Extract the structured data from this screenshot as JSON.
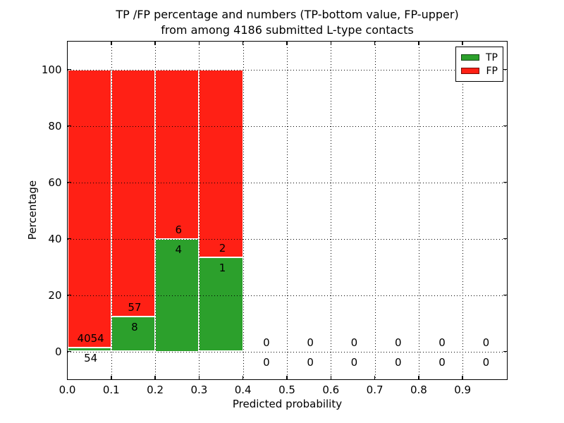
{
  "figure": {
    "title_line1": "TP /FP percentage and numbers (TP-bottom value, FP-upper)",
    "title_line2": "from among 4186 submitted L-type contacts",
    "xlabel": "Predicted probability",
    "ylabel": "Percentage"
  },
  "legend": {
    "position": "upper right",
    "items": [
      {
        "label": "TP",
        "color": "#2ca02c"
      },
      {
        "label": "FP",
        "color": "#ff2015"
      }
    ]
  },
  "chart_data": {
    "type": "bar",
    "stacked": true,
    "title": "TP /FP percentage and numbers (TP-bottom value, FP-upper) from among 4186 submitted L-type contacts",
    "xlabel": "Predicted probability",
    "ylabel": "Percentage",
    "total_submitted": 4186,
    "xlim": [
      0.0,
      1.0
    ],
    "ylim": [
      -9.75,
      110
    ],
    "grid": "dotted black, drawn above bars",
    "legend_position": "upper right",
    "bin_edges": [
      0.0,
      0.1,
      0.2,
      0.3,
      0.4,
      0.5,
      0.6,
      0.7,
      0.8,
      0.9,
      1.0
    ],
    "categories": [
      "0.0-0.1",
      "0.1-0.2",
      "0.2-0.3",
      "0.3-0.4",
      "0.4-0.5",
      "0.5-0.6",
      "0.6-0.7",
      "0.7-0.8",
      "0.8-0.9",
      "0.9-1.0"
    ],
    "series": [
      {
        "name": "TP",
        "color": "#2ca02c",
        "counts": [
          54,
          8,
          4,
          1,
          0,
          0,
          0,
          0,
          0,
          0
        ],
        "percent": [
          1.31,
          12.31,
          40.0,
          33.33,
          0,
          0,
          0,
          0,
          0,
          0
        ]
      },
      {
        "name": "FP",
        "color": "#ff2015",
        "counts": [
          4054,
          57,
          6,
          2,
          0,
          0,
          0,
          0,
          0,
          0
        ],
        "percent": [
          98.69,
          87.69,
          60.0,
          66.67,
          0,
          0,
          0,
          0,
          0,
          0
        ]
      }
    ],
    "bins": [
      {
        "x0": 0.0,
        "x1": 0.1,
        "tp": 54,
        "fp": 4054
      },
      {
        "x0": 0.1,
        "x1": 0.2,
        "tp": 8,
        "fp": 57
      },
      {
        "x0": 0.2,
        "x1": 0.3,
        "tp": 4,
        "fp": 6
      },
      {
        "x0": 0.3,
        "x1": 0.4,
        "tp": 1,
        "fp": 2
      },
      {
        "x0": 0.4,
        "x1": 0.5,
        "tp": 0,
        "fp": 0
      },
      {
        "x0": 0.5,
        "x1": 0.6,
        "tp": 0,
        "fp": 0
      },
      {
        "x0": 0.6,
        "x1": 0.7,
        "tp": 0,
        "fp": 0
      },
      {
        "x0": 0.7,
        "x1": 0.8,
        "tp": 0,
        "fp": 0
      },
      {
        "x0": 0.8,
        "x1": 0.9,
        "tp": 0,
        "fp": 0
      },
      {
        "x0": 0.9,
        "x1": 1.0,
        "tp": 0,
        "fp": 0
      }
    ],
    "xticks": {
      "values": [
        0.0,
        0.1,
        0.2,
        0.3,
        0.4,
        0.5,
        0.6,
        0.7,
        0.8,
        0.9
      ],
      "labels": [
        "0.0",
        "0.1",
        "0.2",
        "0.3",
        "0.4",
        "0.5",
        "0.6",
        "0.7",
        "0.8",
        "0.9"
      ]
    },
    "yticks": {
      "values": [
        0,
        20,
        40,
        60,
        80,
        100
      ],
      "labels": [
        "0",
        "20",
        "40",
        "60",
        "80",
        "100"
      ]
    },
    "colors": {
      "tp": "#2ca02c",
      "fp": "#ff2015",
      "bar_edge": "#ffffff",
      "grid": "#000000",
      "text": "#000000",
      "background": "#ffffff"
    }
  }
}
